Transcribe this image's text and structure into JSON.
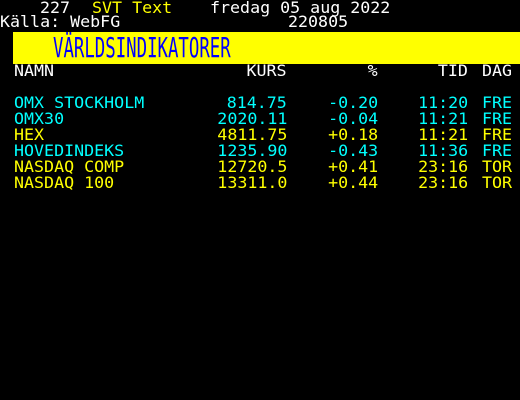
{
  "header": {
    "page_number": "227",
    "service": "SVT Text",
    "date": "fredag 05 aug 2022",
    "source_label": "Källa: WebFG",
    "source_code": "220805"
  },
  "banner": {
    "title": "VÄRLDSINDIKATORER"
  },
  "columns": {
    "name": "NAMN",
    "kurs": "KURS",
    "pct": "%",
    "tid": "TID",
    "dag": "DAG"
  },
  "rows": [
    {
      "name": "OMX STOCKHOLM",
      "kurs": "814.75",
      "pct": "-0.20",
      "tid": "11:20",
      "dag": "FRE",
      "color": "cyan"
    },
    {
      "name": "OMX30",
      "kurs": "2020.11",
      "pct": "-0.04",
      "tid": "11:21",
      "dag": "FRE",
      "color": "cyan"
    },
    {
      "name": "HEX",
      "kurs": "4811.75",
      "pct": "+0.18",
      "tid": "11:21",
      "dag": "FRE",
      "color": "yellow"
    },
    {
      "name": "HOVEDINDEKS",
      "kurs": "1235.90",
      "pct": "-0.43",
      "tid": "11:36",
      "dag": "FRE",
      "color": "cyan"
    },
    {
      "name": "NASDAQ COMP",
      "kurs": "12720.5",
      "pct": "+0.41",
      "tid": "23:16",
      "dag": "TOR",
      "color": "yellow"
    },
    {
      "name": "NASDAQ 100",
      "kurs": "13311.0",
      "pct": "+0.44",
      "tid": "23:16",
      "dag": "TOR",
      "color": "yellow"
    }
  ]
}
